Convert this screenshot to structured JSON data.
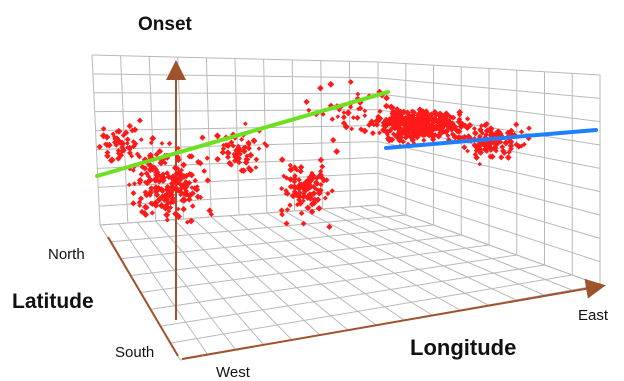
{
  "chart_data": {
    "type": "scatter",
    "title": "",
    "axes": {
      "vertical": "Onset",
      "depth": "Latitude",
      "horizontal": "Longitude"
    },
    "tick_labels": {
      "latitude_far": "North",
      "latitude_near": "South",
      "longitude_left": "West",
      "longitude_right": "East"
    },
    "grid": true,
    "point_color": "#ff1a1a",
    "trend_lines": [
      {
        "color": "#6ee022"
      },
      {
        "color": "#1f7fff"
      }
    ]
  }
}
